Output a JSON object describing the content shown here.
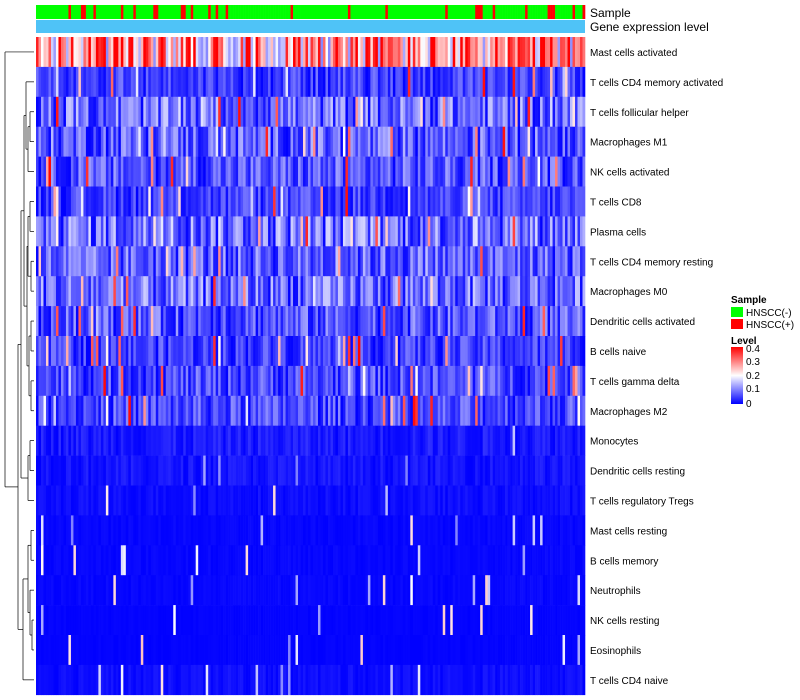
{
  "chart_data": {
    "type": "heatmap",
    "title": "",
    "annotation_rows": [
      "Sample",
      "Gene expression level"
    ],
    "sample_column_count": 220,
    "sample_groups": [
      {
        "name": "HNSCC(-)",
        "color": "#00ff00"
      },
      {
        "name": "HNSCC(+)",
        "color": "#ff0000"
      }
    ],
    "gene_expression_level_color": "#4fc3f7",
    "rows": [
      {
        "label": "Mast cells activated",
        "mean_level": 0.28
      },
      {
        "label": "T cells CD4 memory activated",
        "mean_level": 0.06
      },
      {
        "label": "T cells follicular helper",
        "mean_level": 0.1
      },
      {
        "label": "Macrophages M1",
        "mean_level": 0.09
      },
      {
        "label": "NK cells activated",
        "mean_level": 0.08
      },
      {
        "label": "T cells CD8",
        "mean_level": 0.06
      },
      {
        "label": "Plasma cells",
        "mean_level": 0.11
      },
      {
        "label": "T cells CD4 memory resting",
        "mean_level": 0.09
      },
      {
        "label": "Macrophages M0",
        "mean_level": 0.1
      },
      {
        "label": "Dendritic cells activated",
        "mean_level": 0.08
      },
      {
        "label": "B cells naive",
        "mean_level": 0.06
      },
      {
        "label": "T cells gamma delta",
        "mean_level": 0.07
      },
      {
        "label": "Macrophages M2",
        "mean_level": 0.07
      },
      {
        "label": "Monocytes",
        "mean_level": 0.04
      },
      {
        "label": "Dendritic cells resting",
        "mean_level": 0.03
      },
      {
        "label": "T cells regulatory  Tregs",
        "mean_level": 0.02
      },
      {
        "label": "Mast cells resting",
        "mean_level": 0.01
      },
      {
        "label": "B cells memory",
        "mean_level": 0.01
      },
      {
        "label": "Neutrophils",
        "mean_level": 0.01
      },
      {
        "label": "NK cells resting",
        "mean_level": 0.005
      },
      {
        "label": "Eosinophils",
        "mean_level": 0.005
      },
      {
        "label": "T cells CD4 naive",
        "mean_level": 0.02
      }
    ],
    "legend": {
      "sample_title": "Sample",
      "level_title": "Level",
      "level_ticks": [
        "0.4",
        "0.3",
        "0.2",
        "0.1",
        "0"
      ],
      "level_range": [
        0,
        0.4
      ],
      "colors": {
        "low": "#0000ff",
        "mid": "#ffffff",
        "high": "#ff0000"
      }
    }
  }
}
